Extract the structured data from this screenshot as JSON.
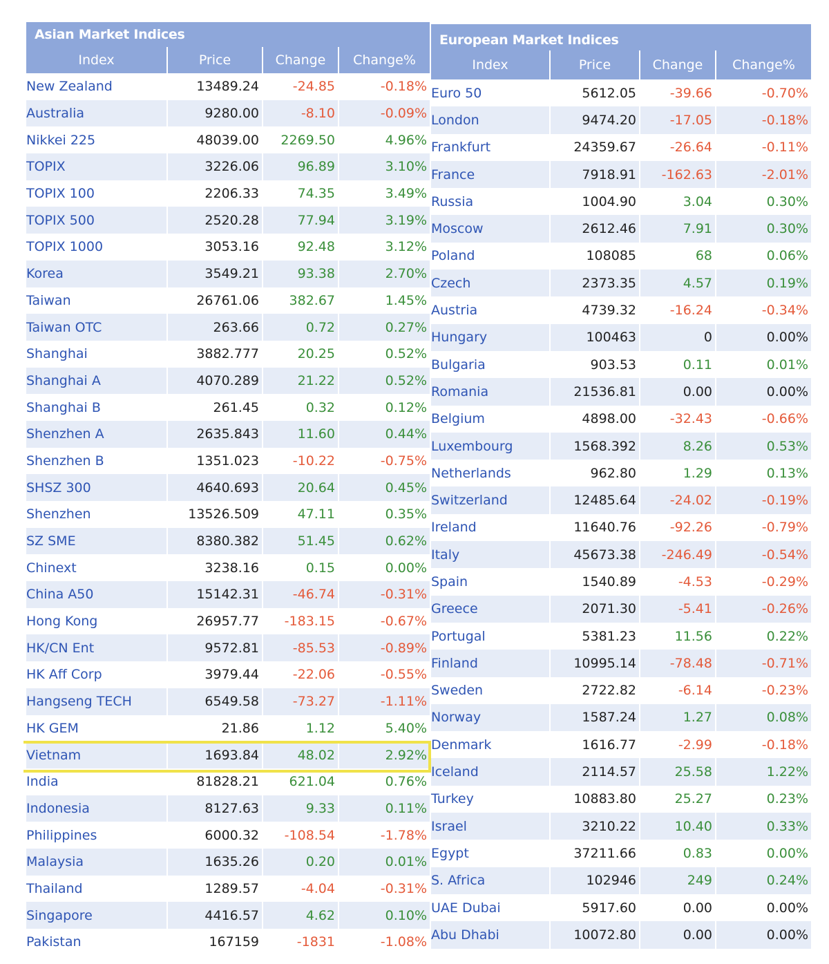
{
  "asian": {
    "title": "Asian Market Indices",
    "columns": [
      "Index",
      "Price",
      "Change",
      "Change%"
    ],
    "rows": [
      {
        "name": "New Zealand",
        "price": "13489.24",
        "change": "-24.85",
        "pct": "-0.18%",
        "dir": "down"
      },
      {
        "name": "Australia",
        "price": "9280.00",
        "change": "-8.10",
        "pct": "-0.09%",
        "dir": "down"
      },
      {
        "name": "Nikkei 225",
        "price": "48039.00",
        "change": "2269.50",
        "pct": "4.96%",
        "dir": "up"
      },
      {
        "name": "TOPIX",
        "price": "3226.06",
        "change": "96.89",
        "pct": "3.10%",
        "dir": "up"
      },
      {
        "name": "TOPIX 100",
        "price": "2206.33",
        "change": "74.35",
        "pct": "3.49%",
        "dir": "up"
      },
      {
        "name": "TOPIX 500",
        "price": "2520.28",
        "change": "77.94",
        "pct": "3.19%",
        "dir": "up"
      },
      {
        "name": "TOPIX 1000",
        "price": "3053.16",
        "change": "92.48",
        "pct": "3.12%",
        "dir": "up"
      },
      {
        "name": "Korea",
        "price": "3549.21",
        "change": "93.38",
        "pct": "2.70%",
        "dir": "up"
      },
      {
        "name": "Taiwan",
        "price": "26761.06",
        "change": "382.67",
        "pct": "1.45%",
        "dir": "up"
      },
      {
        "name": "Taiwan OTC",
        "price": "263.66",
        "change": "0.72",
        "pct": "0.27%",
        "dir": "up"
      },
      {
        "name": "Shanghai",
        "price": "3882.777",
        "change": "20.25",
        "pct": "0.52%",
        "dir": "up"
      },
      {
        "name": "Shanghai A",
        "price": "4070.289",
        "change": "21.22",
        "pct": "0.52%",
        "dir": "up"
      },
      {
        "name": "Shanghai B",
        "price": "261.45",
        "change": "0.32",
        "pct": "0.12%",
        "dir": "up"
      },
      {
        "name": "Shenzhen A",
        "price": "2635.843",
        "change": "11.60",
        "pct": "0.44%",
        "dir": "up"
      },
      {
        "name": "Shenzhen B",
        "price": "1351.023",
        "change": "-10.22",
        "pct": "-0.75%",
        "dir": "down"
      },
      {
        "name": "SHSZ 300",
        "price": "4640.693",
        "change": "20.64",
        "pct": "0.45%",
        "dir": "up"
      },
      {
        "name": "Shenzhen",
        "price": "13526.509",
        "change": "47.11",
        "pct": "0.35%",
        "dir": "up"
      },
      {
        "name": "SZ SME",
        "price": "8380.382",
        "change": "51.45",
        "pct": "0.62%",
        "dir": "up"
      },
      {
        "name": "Chinext",
        "price": "3238.16",
        "change": "0.15",
        "pct": "0.00%",
        "dir": "up"
      },
      {
        "name": "China A50",
        "price": "15142.31",
        "change": "-46.74",
        "pct": "-0.31%",
        "dir": "down"
      },
      {
        "name": "Hong Kong",
        "price": "26957.77",
        "change": "-183.15",
        "pct": "-0.67%",
        "dir": "down"
      },
      {
        "name": "HK/CN Ent",
        "price": "9572.81",
        "change": "-85.53",
        "pct": "-0.89%",
        "dir": "down"
      },
      {
        "name": "HK Aff Corp",
        "price": "3979.44",
        "change": "-22.06",
        "pct": "-0.55%",
        "dir": "down"
      },
      {
        "name": "Hangseng TECH",
        "price": "6549.58",
        "change": "-73.27",
        "pct": "-1.11%",
        "dir": "down"
      },
      {
        "name": "HK GEM",
        "price": "21.86",
        "change": "1.12",
        "pct": "5.40%",
        "dir": "up"
      },
      {
        "name": "Vietnam",
        "price": "1693.84",
        "change": "48.02",
        "pct": "2.92%",
        "dir": "up"
      },
      {
        "name": "India",
        "price": "81828.21",
        "change": "621.04",
        "pct": "0.76%",
        "dir": "up"
      },
      {
        "name": "Indonesia",
        "price": "8127.63",
        "change": "9.33",
        "pct": "0.11%",
        "dir": "up"
      },
      {
        "name": "Philippines",
        "price": "6000.32",
        "change": "-108.54",
        "pct": "-1.78%",
        "dir": "down"
      },
      {
        "name": "Malaysia",
        "price": "1635.26",
        "change": "0.20",
        "pct": "0.01%",
        "dir": "up"
      },
      {
        "name": "Thailand",
        "price": "1289.57",
        "change": "-4.04",
        "pct": "-0.31%",
        "dir": "down"
      },
      {
        "name": "Singapore",
        "price": "4416.57",
        "change": "4.62",
        "pct": "0.10%",
        "dir": "up"
      },
      {
        "name": "Pakistan",
        "price": "167159",
        "change": "-1831",
        "pct": "-1.08%",
        "dir": "down"
      }
    ]
  },
  "european": {
    "title": "European Market Indices",
    "columns": [
      "Index",
      "Price",
      "Change",
      "Change%"
    ],
    "rows": [
      {
        "name": "Euro 50",
        "price": "5612.05",
        "change": "-39.66",
        "pct": "-0.70%",
        "dir": "down"
      },
      {
        "name": "London",
        "price": "9474.20",
        "change": "-17.05",
        "pct": "-0.18%",
        "dir": "down"
      },
      {
        "name": "Frankfurt",
        "price": "24359.67",
        "change": "-26.64",
        "pct": "-0.11%",
        "dir": "down"
      },
      {
        "name": "France",
        "price": "7918.91",
        "change": "-162.63",
        "pct": "-2.01%",
        "dir": "down"
      },
      {
        "name": "Russia",
        "price": "1004.90",
        "change": "3.04",
        "pct": "0.30%",
        "dir": "up"
      },
      {
        "name": "Moscow",
        "price": "2612.46",
        "change": "7.91",
        "pct": "0.30%",
        "dir": "up"
      },
      {
        "name": "Poland",
        "price": "108085",
        "change": "68",
        "pct": "0.06%",
        "dir": "up"
      },
      {
        "name": "Czech",
        "price": "2373.35",
        "change": "4.57",
        "pct": "0.19%",
        "dir": "up"
      },
      {
        "name": "Austria",
        "price": "4739.32",
        "change": "-16.24",
        "pct": "-0.34%",
        "dir": "down"
      },
      {
        "name": "Hungary",
        "price": "100463",
        "change": "0",
        "pct": "0.00%",
        "dir": "flat"
      },
      {
        "name": "Bulgaria",
        "price": "903.53",
        "change": "0.11",
        "pct": "0.01%",
        "dir": "up"
      },
      {
        "name": "Romania",
        "price": "21536.81",
        "change": "0.00",
        "pct": "0.00%",
        "dir": "flat"
      },
      {
        "name": "Belgium",
        "price": "4898.00",
        "change": "-32.43",
        "pct": "-0.66%",
        "dir": "down"
      },
      {
        "name": "Luxembourg",
        "price": "1568.392",
        "change": "8.26",
        "pct": "0.53%",
        "dir": "up"
      },
      {
        "name": "Netherlands",
        "price": "962.80",
        "change": "1.29",
        "pct": "0.13%",
        "dir": "up"
      },
      {
        "name": "Switzerland",
        "price": "12485.64",
        "change": "-24.02",
        "pct": "-0.19%",
        "dir": "down"
      },
      {
        "name": "Ireland",
        "price": "11640.76",
        "change": "-92.26",
        "pct": "-0.79%",
        "dir": "down"
      },
      {
        "name": "Italy",
        "price": "45673.38",
        "change": "-246.49",
        "pct": "-0.54%",
        "dir": "down"
      },
      {
        "name": "Spain",
        "price": "1540.89",
        "change": "-4.53",
        "pct": "-0.29%",
        "dir": "down"
      },
      {
        "name": "Greece",
        "price": "2071.30",
        "change": "-5.41",
        "pct": "-0.26%",
        "dir": "down"
      },
      {
        "name": "Portugal",
        "price": "5381.23",
        "change": "11.56",
        "pct": "0.22%",
        "dir": "up"
      },
      {
        "name": "Finland",
        "price": "10995.14",
        "change": "-78.48",
        "pct": "-0.71%",
        "dir": "down"
      },
      {
        "name": "Sweden",
        "price": "2722.82",
        "change": "-6.14",
        "pct": "-0.23%",
        "dir": "down"
      },
      {
        "name": "Norway",
        "price": "1587.24",
        "change": "1.27",
        "pct": "0.08%",
        "dir": "up"
      },
      {
        "name": "Denmark",
        "price": "1616.77",
        "change": "-2.99",
        "pct": "-0.18%",
        "dir": "down"
      },
      {
        "name": "Iceland",
        "price": "2114.57",
        "change": "25.58",
        "pct": "1.22%",
        "dir": "up"
      },
      {
        "name": "Turkey",
        "price": "10883.80",
        "change": "25.27",
        "pct": "0.23%",
        "dir": "up"
      },
      {
        "name": "Israel",
        "price": "3210.22",
        "change": "10.40",
        "pct": "0.33%",
        "dir": "up"
      },
      {
        "name": "Egypt",
        "price": "37211.66",
        "change": "0.83",
        "pct": "0.00%",
        "dir": "up"
      },
      {
        "name": "S. Africa",
        "price": "102946",
        "change": "249",
        "pct": "0.24%",
        "dir": "up"
      },
      {
        "name": "UAE Dubai",
        "price": "5917.60",
        "change": "0.00",
        "pct": "0.00%",
        "dir": "flat"
      },
      {
        "name": "Abu Dhabi",
        "price": "10072.80",
        "change": "0.00",
        "pct": "0.00%",
        "dir": "flat"
      }
    ]
  },
  "highlighted_row": "Vietnam",
  "colors": {
    "header_bg": "#8ea7da",
    "alt_row_bg": "#e6ecf7",
    "name_text": "#2f55b4",
    "positive": "#3a8f3a",
    "negative": "#e45a3a",
    "highlight_border": "#f0e24a"
  }
}
